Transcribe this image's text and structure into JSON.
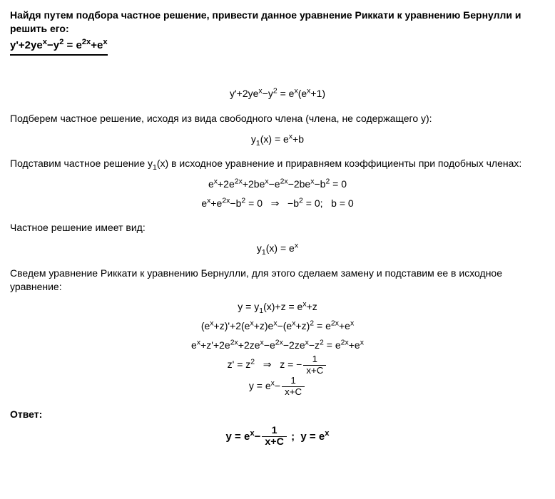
{
  "problem": {
    "title": "Найдя путем подбора частное решение, привести данное уравнение Риккати к уравнению Бернулли и решить его:",
    "equation": "y'+2ye<sup>x</sup>−y<sup>2</sup> = e<sup>2x</sup>+e<sup>x</sup>"
  },
  "step1_eq": "y'+2ye<sup>x</sup>−y<sup>2</sup> = e<sup>x</sup>(e<sup>x</sup>+1)",
  "step2_text": "Подберем частное решение, исходя из вида свободного члена (члена, не содержащего y):",
  "step2_eq": "y<sub>1</sub>(x) = e<sup>x</sup>+b",
  "step3_text": "Подставим частное решение y<sub>1</sub>(x) в исходное уравнение и приравняем коэффициенты при подобных членах:",
  "step3_eq_lines": [
    "e<sup>x</sup>+2e<sup>2x</sup>+2be<sup>x</sup>−e<sup>2x</sup>−2be<sup>x</sup>−b<sup>2</sup> = 0",
    "e<sup>x</sup>+e<sup>2x</sup>−b<sup>2</sup> = 0 &nbsp;&nbsp;⇒&nbsp;&nbsp; −b<sup>2</sup> = 0; &nbsp;&nbsp;b = 0"
  ],
  "step4_text": "Частное решение имеет вид:",
  "step4_eq": "y<sub>1</sub>(x) = e<sup>x</sup>",
  "step5_text": "Сведем уравнение Риккати к уравнению Бернулли, для этого сделаем замену и подставим ее в исходное уравнение:",
  "step5_eq_lines": [
    "y = y<sub>1</sub>(x)+z = e<sup>x</sup>+z",
    "(e<sup>x</sup>+z)'+2(e<sup>x</sup>+z)e<sup>x</sup>−(e<sup>x</sup>+z)<sup>2</sup> = e<sup>2x</sup>+e<sup>x</sup>",
    "e<sup>x</sup>+z'+2e<sup>2x</sup>+2ze<sup>x</sup>−e<sup>2x</sup>−2ze<sup>x</sup>−z<sup>2</sup> = e<sup>2x</sup>+e<sup>x</sup>"
  ],
  "step5_zprime": {
    "lead": "z' = z<sup>2</sup> &nbsp;&nbsp;⇒&nbsp;&nbsp; z = −",
    "frac_num": "1",
    "frac_den": "x+C"
  },
  "step5_y": {
    "lead": "y = e<sup>x</sup>−",
    "frac_num": "1",
    "frac_den": "x+C"
  },
  "answer_label": "Ответ:",
  "answer": {
    "part1_lead": "y = e<sup>x</sup>−",
    "frac_num": "1",
    "frac_den": "x+C",
    "sep": " ; &nbsp;",
    "part2": "y = e<sup>x</sup>"
  }
}
